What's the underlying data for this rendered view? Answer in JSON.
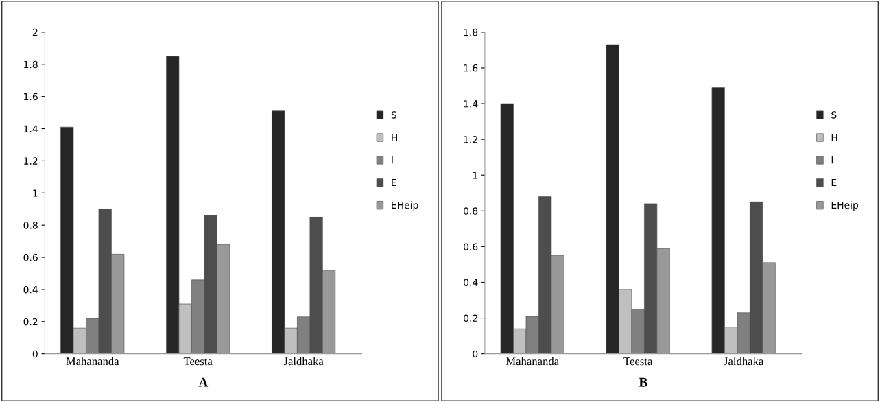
{
  "chart_data": [
    {
      "type": "bar",
      "title": "A",
      "categories": [
        "Mahananda",
        "Teesta",
        "Jaldhaka"
      ],
      "series": [
        {
          "name": "S",
          "color": "#262626",
          "values": [
            1.41,
            1.85,
            1.51
          ]
        },
        {
          "name": "H",
          "color": "#bfbfbf",
          "values": [
            0.16,
            0.31,
            0.16
          ]
        },
        {
          "name": "I",
          "color": "#808080",
          "values": [
            0.22,
            0.46,
            0.23
          ]
        },
        {
          "name": "E",
          "color": "#4d4d4d",
          "values": [
            0.9,
            0.86,
            0.85
          ]
        },
        {
          "name": "EHeip",
          "color": "#999999",
          "values": [
            0.62,
            0.68,
            0.52
          ]
        }
      ],
      "ylim": [
        0,
        2
      ],
      "yticks": [
        0,
        0.2,
        0.4,
        0.6,
        0.8,
        1,
        1.2,
        1.4,
        1.6,
        1.8,
        2
      ],
      "grid": false,
      "legend": "right"
    },
    {
      "type": "bar",
      "title": "B",
      "categories": [
        "Mahananda",
        "Teesta",
        "Jaldhaka"
      ],
      "series": [
        {
          "name": "S",
          "color": "#262626",
          "values": [
            1.4,
            1.73,
            1.49
          ]
        },
        {
          "name": "H",
          "color": "#bfbfbf",
          "values": [
            0.14,
            0.36,
            0.15
          ]
        },
        {
          "name": "I",
          "color": "#808080",
          "values": [
            0.21,
            0.25,
            0.23
          ]
        },
        {
          "name": "E",
          "color": "#4d4d4d",
          "values": [
            0.88,
            0.84,
            0.85
          ]
        },
        {
          "name": "EHeip",
          "color": "#999999",
          "values": [
            0.55,
            0.59,
            0.51
          ]
        }
      ],
      "ylim": [
        0,
        1.8
      ],
      "yticks": [
        0,
        0.2,
        0.4,
        0.6,
        0.8,
        1,
        1.2,
        1.4,
        1.6,
        1.8
      ],
      "grid": false,
      "legend": "right"
    }
  ]
}
